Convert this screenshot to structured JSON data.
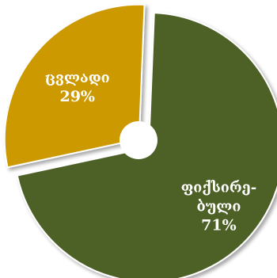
{
  "chart_data": {
    "type": "pie",
    "donut": true,
    "slices": [
      {
        "label_lines": [
          "ფიქსირე-",
          "ბული"
        ],
        "value": 71,
        "value_label": "71%",
        "color": "#4e6127"
      },
      {
        "label_lines": [
          "ცვლადი"
        ],
        "value": 29,
        "value_label": "29%",
        "color": "#cc9906"
      }
    ],
    "title": "",
    "legend": "none"
  }
}
